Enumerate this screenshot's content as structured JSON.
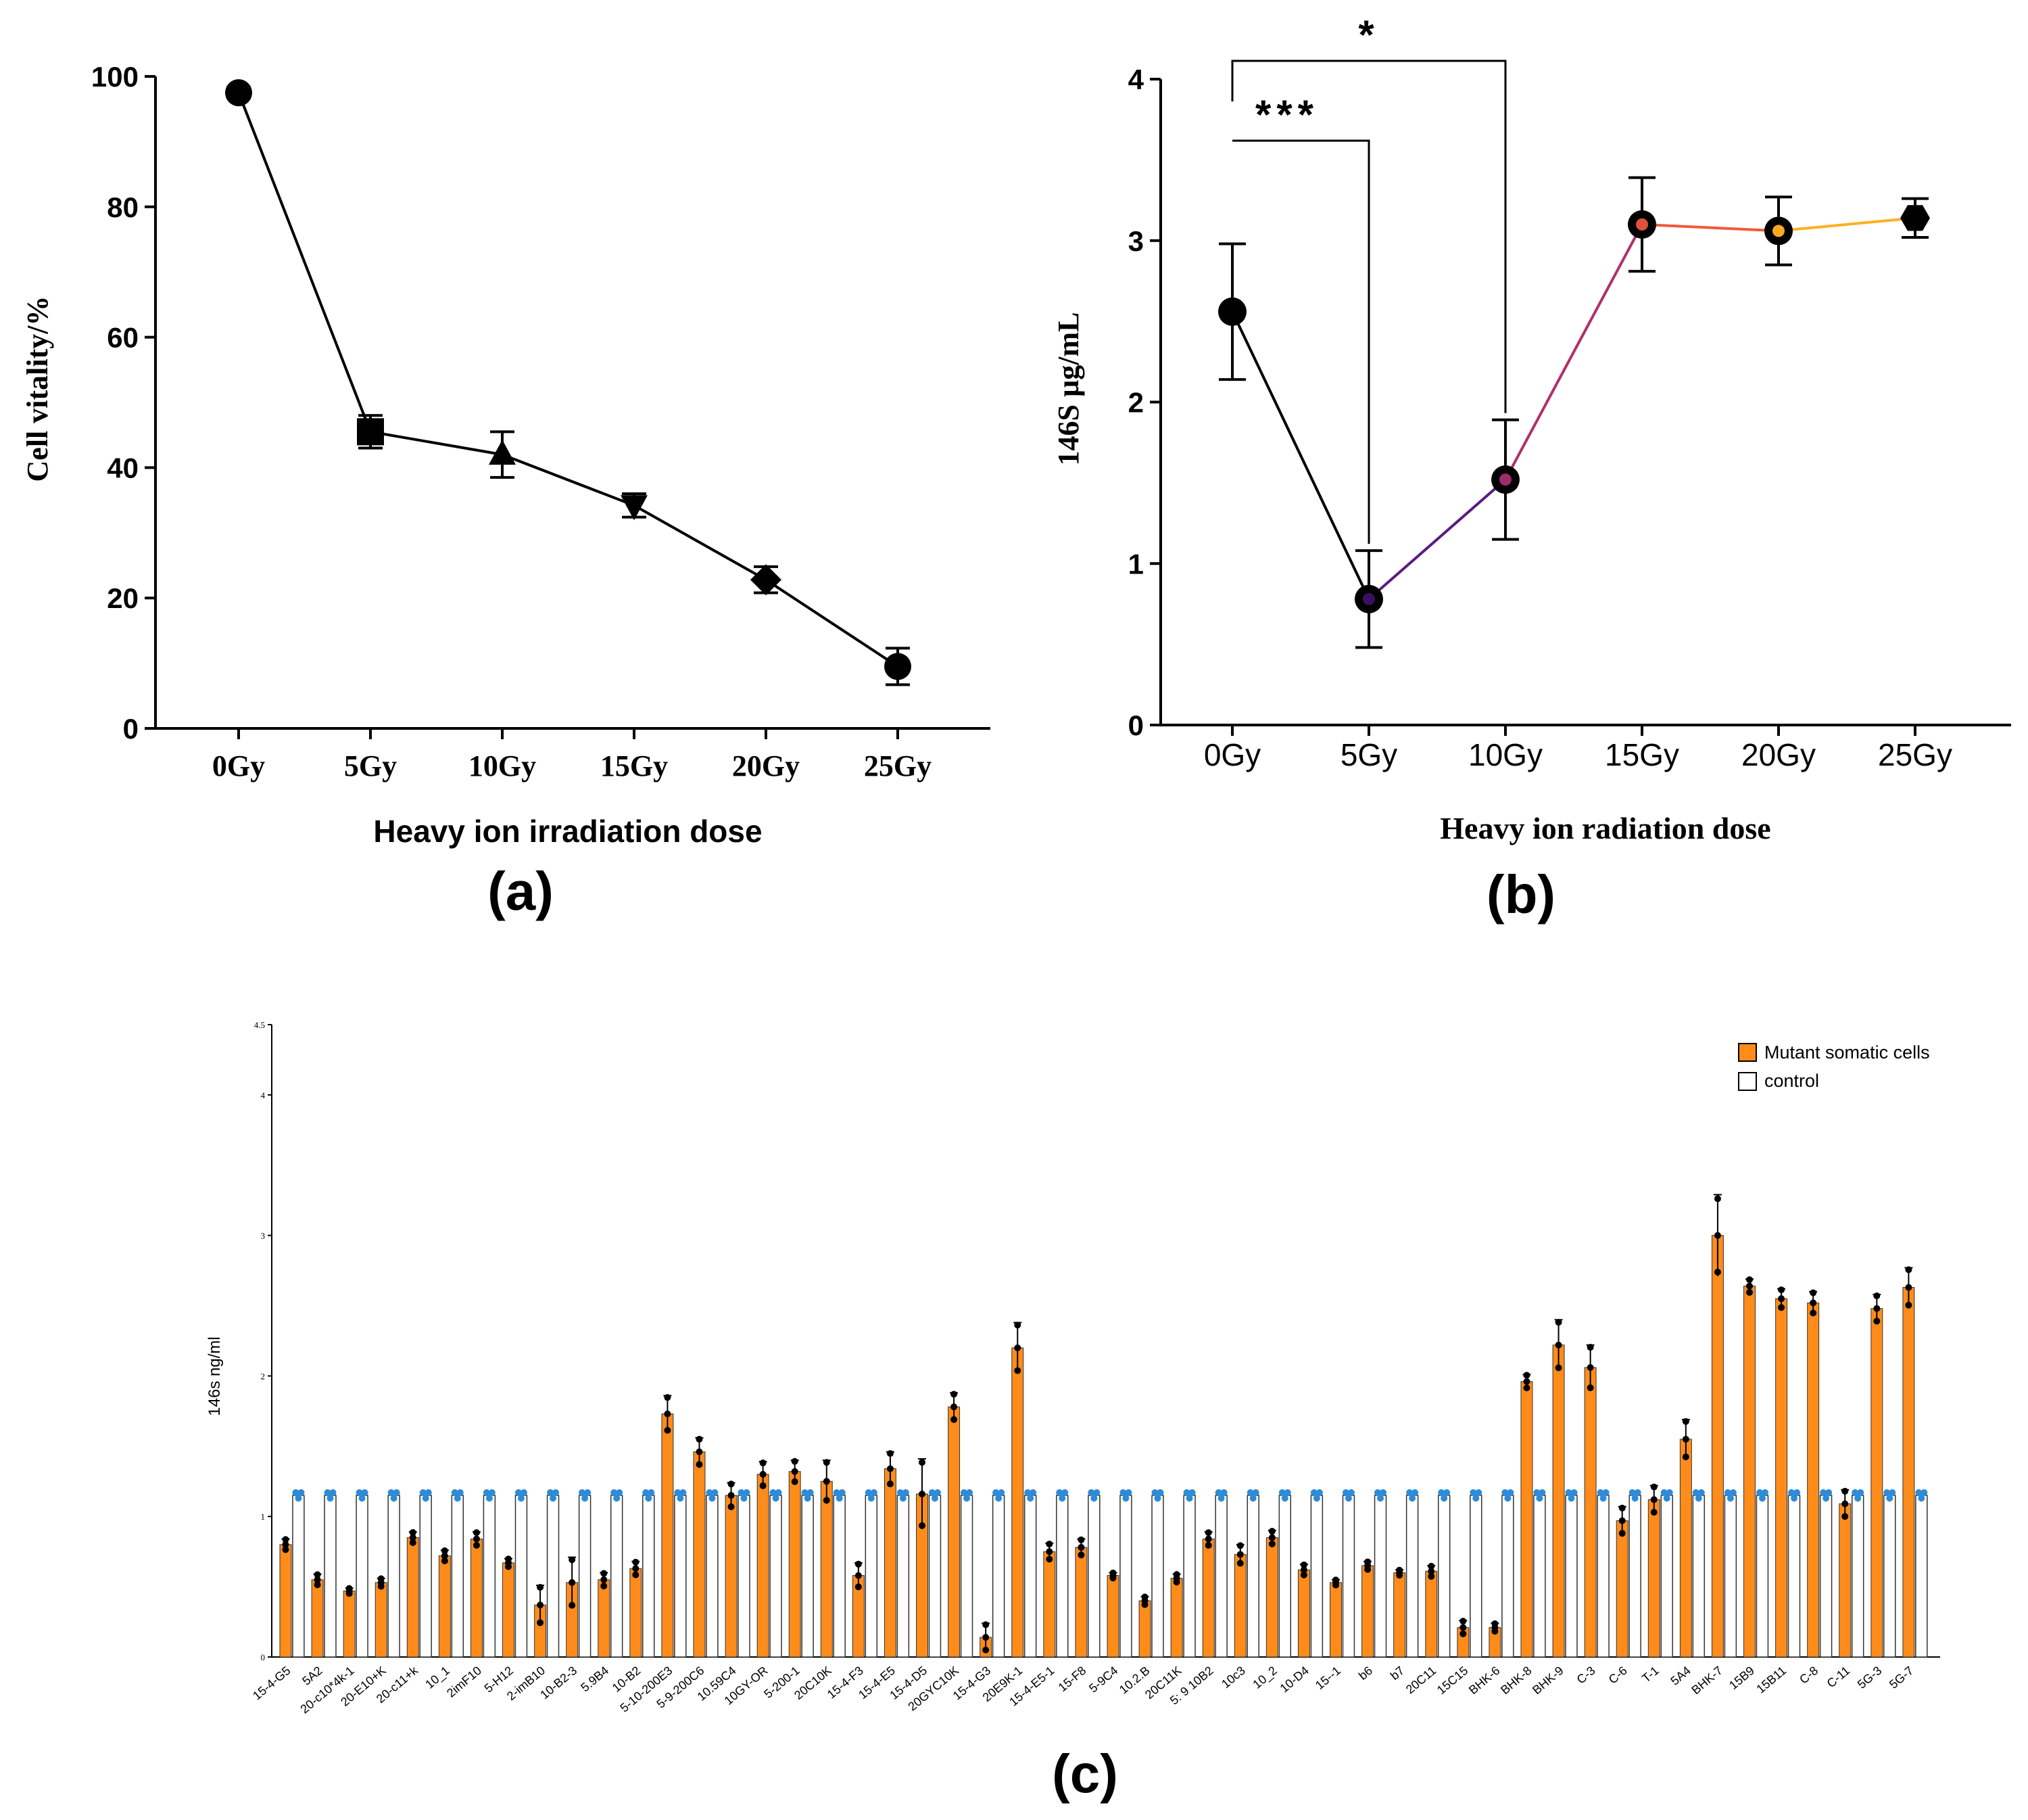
{
  "panels": {
    "a": {
      "label": "(a)"
    },
    "b": {
      "label": "(b)"
    },
    "c": {
      "label": "(c)"
    }
  },
  "colors": {
    "axis": "#000000",
    "bar_mutant": "#FF8C1A",
    "bar_control": "#FFFFFF",
    "control_dots": "#2E8BD8",
    "line_b_seg1": "#000000",
    "line_b_seg2": "#5B1A80",
    "line_b_seg3": "#B0306A",
    "line_b_seg4": "#F05A3C",
    "line_b_seg5": "#FFB020"
  },
  "chart_data": [
    {
      "id": "a",
      "type": "line",
      "title": "",
      "xlabel": "Heavy ion irradiation dose",
      "ylabel": "Cell vitality/%",
      "categories": [
        "0Gy",
        "5Gy",
        "10Gy",
        "15Gy",
        "20Gy",
        "25Gy"
      ],
      "values": [
        97.5,
        45.5,
        42,
        34.2,
        22.8,
        9.5
      ],
      "errors": [
        0.8,
        2.5,
        3.5,
        1.8,
        2.0,
        2.8
      ],
      "markers": [
        "circle",
        "square",
        "triangle-up",
        "triangle-down",
        "diamond",
        "circle"
      ],
      "ylim": [
        0,
        100
      ],
      "yticks": [
        "0",
        "20",
        "40",
        "60",
        "80",
        "100"
      ]
    },
    {
      "id": "b",
      "type": "line",
      "title": "",
      "xlabel": "Heavy ion radiation dose",
      "ylabel": "146S µg/mL",
      "categories": [
        "0Gy",
        "5Gy",
        "10Gy",
        "15Gy",
        "20Gy",
        "25Gy"
      ],
      "values": [
        2.56,
        0.78,
        1.52,
        3.1,
        3.06,
        3.14
      ],
      "errors": [
        0.42,
        0.3,
        0.37,
        0.29,
        0.21,
        0.12
      ],
      "markers": [
        "circle",
        "circle",
        "circle",
        "circle",
        "circle",
        "hexagon"
      ],
      "ylim": [
        0,
        4
      ],
      "yticks": [
        "0",
        "1",
        "2",
        "3",
        "4"
      ],
      "annotations": [
        {
          "from": "0Gy",
          "to": "10Gy",
          "text": "*"
        },
        {
          "from": "0Gy",
          "to": "5Gy",
          "text": "***"
        }
      ]
    },
    {
      "id": "c",
      "type": "bar",
      "title": "",
      "xlabel": "",
      "ylabel": "146s ng/ml",
      "ylim": [
        0,
        4.5
      ],
      "yticks": [
        "0",
        "1",
        "2",
        "3",
        "4",
        "4.5"
      ],
      "legend": [
        "Mutant somatic cells",
        "control"
      ],
      "legend_position": "top-right",
      "control_value": 1.15,
      "categories": [
        "15-4-G5",
        "5A2",
        "20-c10*4k-1",
        "20-E10+K",
        "20-c11+k",
        "10_1",
        "2imF10",
        "5-H12",
        "2-imB10",
        "10-B2-3",
        "5.9B4",
        "10-B2",
        "5-10-200E3",
        "5-9-200C6",
        "10.59C4",
        "10GY-OR",
        "5-200-1",
        "20C10K",
        "15-4-F3",
        "15-4-E5",
        "15-4-D5",
        "20GYC10K",
        "15-4-G3",
        "20E9K-1",
        "15-4-E5-1",
        "15-F8",
        "5-9C4",
        "10.2.B",
        "20C11K",
        "5: 9 10B2",
        "10c3",
        "10_2",
        "10-D4",
        "15--1",
        "b6",
        "b7",
        "20C11",
        "15C15",
        "BHK-6",
        "BHK-8",
        "BHK-9",
        "C-3",
        "C-6",
        "T-1",
        "5A4",
        "BHK-7",
        "15B9",
        "15B11",
        "C-8",
        "C-11",
        "5G-3",
        "5G-7"
      ],
      "series": [
        {
          "name": "Mutant somatic cells",
          "values": [
            0.8,
            0.55,
            0.47,
            0.53,
            0.85,
            0.72,
            0.84,
            0.67,
            0.37,
            0.53,
            0.55,
            0.63,
            1.73,
            1.46,
            1.15,
            1.3,
            1.32,
            1.25,
            0.58,
            1.34,
            1.16,
            1.78,
            0.14,
            2.2,
            0.75,
            0.78,
            0.58,
            0.4,
            0.56,
            0.84,
            0.73,
            0.85,
            0.62,
            0.53,
            0.65,
            0.6,
            0.61,
            0.21,
            0.21,
            1.96,
            2.22,
            2.06,
            0.97,
            1.12,
            1.55,
            3.0,
            2.64,
            2.55,
            2.52,
            1.09,
            2.48,
            2.63
          ]
        },
        {
          "name": "control",
          "values": [
            1.15,
            1.15,
            1.15,
            1.15,
            1.15,
            1.15,
            1.15,
            1.15,
            1.15,
            1.15,
            1.15,
            1.15,
            1.15,
            1.15,
            1.15,
            1.15,
            1.15,
            1.15,
            1.15,
            1.15,
            1.15,
            1.15,
            1.15,
            1.15,
            1.15,
            1.15,
            1.15,
            1.15,
            1.15,
            1.15,
            1.15,
            1.15,
            1.15,
            1.15,
            1.15,
            1.15,
            1.15,
            1.15,
            1.15,
            1.15,
            1.15,
            1.15,
            1.15,
            1.15,
            1.15,
            1.15,
            1.15,
            1.15,
            1.15,
            1.15,
            1.15,
            1.15
          ]
        }
      ],
      "errors": [
        0.04,
        0.04,
        0.02,
        0.03,
        0.04,
        0.04,
        0.05,
        0.03,
        0.14,
        0.18,
        0.05,
        0.05,
        0.13,
        0.1,
        0.09,
        0.09,
        0.08,
        0.15,
        0.09,
        0.12,
        0.25,
        0.1,
        0.1,
        0.18,
        0.06,
        0.06,
        0.02,
        0.03,
        0.03,
        0.05,
        0.07,
        0.05,
        0.04,
        0.02,
        0.03,
        0.02,
        0.04,
        0.05,
        0.03,
        0.05,
        0.18,
        0.16,
        0.1,
        0.1,
        0.14,
        0.29,
        0.05,
        0.07,
        0.08,
        0.1,
        0.1,
        0.14
      ]
    }
  ]
}
